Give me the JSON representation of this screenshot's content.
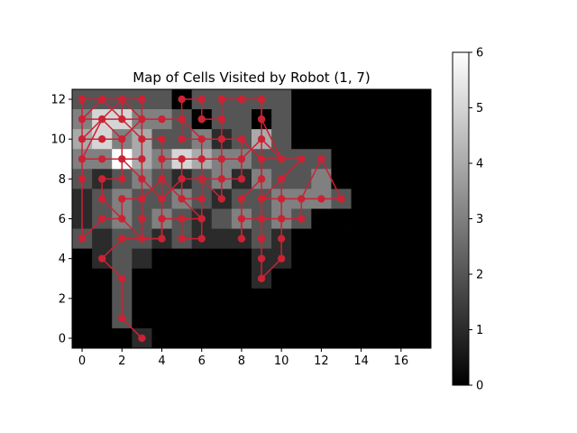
{
  "chart_data": {
    "type": "heatmap",
    "title": "Map of Cells Visited by Robot (1, 7)",
    "xlabel": "",
    "ylabel": "",
    "xlim": [
      -0.5,
      17.5
    ],
    "ylim": [
      -0.5,
      12.5
    ],
    "x_ticks": [
      0,
      2,
      4,
      6,
      8,
      10,
      12,
      14,
      16
    ],
    "y_ticks": [
      0,
      2,
      4,
      6,
      8,
      10,
      12
    ],
    "colorbar": {
      "min": 0,
      "max": 6,
      "ticks": [
        0,
        1,
        2,
        3,
        4,
        5,
        6
      ],
      "colormap": "gray"
    },
    "grid": false,
    "visit_counts": [
      {
        "y": 12,
        "values": [
          2,
          2,
          2,
          2,
          2,
          0,
          2,
          2,
          2,
          2,
          2,
          0,
          0,
          0,
          0,
          0,
          0,
          0
        ]
      },
      {
        "y": 11,
        "values": [
          3,
          5,
          5,
          3,
          3,
          2,
          0,
          2,
          2,
          0,
          2,
          0,
          0,
          0,
          0,
          0,
          0,
          0
        ]
      },
      {
        "y": 10,
        "values": [
          4,
          5,
          3,
          4,
          2,
          2,
          3,
          1,
          2,
          4,
          2,
          0,
          0,
          0,
          0,
          0,
          0,
          0
        ]
      },
      {
        "y": 9,
        "values": [
          3,
          3,
          6,
          4,
          3,
          5,
          4,
          3,
          3,
          2,
          2,
          2,
          2,
          0,
          0,
          0,
          0,
          0
        ]
      },
      {
        "y": 8,
        "values": [
          2,
          1,
          2,
          3,
          2,
          1,
          2,
          3,
          1,
          3,
          2,
          2,
          3,
          0,
          0,
          0,
          0,
          0
        ]
      },
      {
        "y": 7,
        "values": [
          1,
          2,
          3,
          2,
          2,
          3,
          2,
          1,
          2,
          2,
          3,
          3,
          3,
          2,
          0,
          0,
          0,
          0
        ]
      },
      {
        "y": 6,
        "values": [
          1,
          2,
          3,
          2,
          3,
          2,
          1,
          2,
          3,
          2,
          3,
          2,
          0,
          0,
          0,
          0,
          0,
          0
        ]
      },
      {
        "y": 5,
        "values": [
          2,
          1,
          2,
          2,
          1,
          2,
          1,
          1,
          1,
          2,
          1,
          0,
          0,
          0,
          0,
          0,
          0,
          0
        ]
      },
      {
        "y": 4,
        "values": [
          0,
          1,
          2,
          1,
          0,
          0,
          0,
          0,
          0,
          1,
          1,
          0,
          0,
          0,
          0,
          0,
          0,
          0
        ]
      },
      {
        "y": 3,
        "values": [
          0,
          0,
          2,
          0,
          0,
          0,
          0,
          0,
          0,
          1,
          0,
          0,
          0,
          0,
          0,
          0,
          0,
          0
        ]
      },
      {
        "y": 2,
        "values": [
          0,
          0,
          2,
          0,
          0,
          0,
          0,
          0,
          0,
          0,
          0,
          0,
          0,
          0,
          0,
          0,
          0,
          0
        ]
      },
      {
        "y": 1,
        "values": [
          0,
          0,
          2,
          0,
          0,
          0,
          0,
          0,
          0,
          0,
          0,
          0,
          0,
          0,
          0,
          0,
          0,
          0
        ]
      },
      {
        "y": 0,
        "values": [
          0,
          0,
          0,
          1,
          0,
          0,
          0,
          0,
          0,
          0,
          0,
          0,
          0,
          0,
          0,
          0,
          0,
          0
        ]
      }
    ],
    "path": {
      "color": "#cc2233",
      "points": [
        [
          3,
          0
        ],
        [
          2,
          1
        ],
        [
          2,
          3
        ],
        [
          1,
          4
        ],
        [
          2,
          5
        ],
        [
          3,
          5
        ],
        [
          4,
          5
        ],
        [
          4,
          6
        ],
        [
          5,
          6
        ],
        [
          6,
          6
        ],
        [
          5,
          7
        ],
        [
          5,
          8
        ],
        [
          5,
          9
        ],
        [
          4,
          9
        ],
        [
          4,
          10
        ],
        [
          3,
          10
        ],
        [
          3,
          11
        ],
        [
          3,
          12
        ],
        [
          2,
          12
        ],
        [
          1,
          12
        ],
        [
          0,
          12
        ],
        [
          0,
          11
        ],
        [
          1,
          11
        ],
        [
          2,
          11
        ],
        [
          2,
          12
        ],
        [
          3,
          11
        ],
        [
          2,
          10
        ],
        [
          1,
          10
        ],
        [
          0,
          10
        ],
        [
          0,
          9
        ],
        [
          1,
          9
        ],
        [
          2,
          9
        ],
        [
          3,
          9
        ],
        [
          3,
          8
        ],
        [
          3,
          7
        ],
        [
          2,
          7
        ],
        [
          2,
          6
        ],
        [
          1,
          6
        ],
        [
          0,
          5
        ],
        [
          0,
          8
        ],
        [
          0,
          9
        ],
        [
          1,
          11
        ],
        [
          2,
          10
        ],
        [
          2,
          9
        ],
        [
          2,
          8
        ],
        [
          1,
          8
        ],
        [
          1,
          7
        ],
        [
          2,
          6
        ],
        [
          3,
          5
        ],
        [
          4,
          5
        ],
        [
          4,
          7
        ],
        [
          4,
          8
        ],
        [
          4,
          9
        ],
        [
          5,
          9
        ],
        [
          6,
          9
        ],
        [
          6,
          10
        ],
        [
          5,
          10
        ],
        [
          5,
          11
        ],
        [
          4,
          11
        ],
        [
          3,
          11
        ],
        [
          2,
          11
        ],
        [
          2,
          12
        ],
        [
          1,
          11
        ],
        [
          0,
          10
        ],
        [
          0,
          11
        ],
        [
          1,
          12
        ],
        [
          2,
          11
        ],
        [
          3,
          10
        ],
        [
          3,
          9
        ],
        [
          2,
          9
        ],
        [
          3,
          8
        ],
        [
          4,
          7
        ],
        [
          5,
          8
        ],
        [
          6,
          8
        ],
        [
          7,
          7
        ],
        [
          7,
          8
        ],
        [
          6,
          8
        ],
        [
          6,
          7
        ],
        [
          6,
          6
        ],
        [
          6,
          5
        ],
        [
          5,
          5
        ],
        [
          5,
          6
        ],
        [
          4,
          6
        ],
        [
          4,
          5
        ],
        [
          3,
          5
        ],
        [
          3,
          6
        ],
        [
          3,
          7
        ],
        [
          4,
          8
        ],
        [
          5,
          7
        ],
        [
          6,
          7
        ],
        [
          6,
          9
        ],
        [
          7,
          9
        ],
        [
          7,
          10
        ],
        [
          8,
          10
        ],
        [
          9,
          9
        ],
        [
          10,
          9
        ],
        [
          11,
          9
        ],
        [
          10,
          8
        ],
        [
          9,
          7
        ],
        [
          9,
          6
        ],
        [
          9,
          5
        ],
        [
          9,
          4
        ],
        [
          9,
          3
        ],
        [
          10,
          4
        ],
        [
          10,
          5
        ],
        [
          10,
          6
        ],
        [
          10,
          7
        ],
        [
          11,
          7
        ],
        [
          12,
          7
        ],
        [
          13,
          7
        ],
        [
          12,
          9
        ],
        [
          11,
          7
        ],
        [
          11,
          6
        ],
        [
          10,
          6
        ],
        [
          9,
          6
        ],
        [
          8,
          6
        ],
        [
          8,
          5
        ],
        [
          8,
          7
        ],
        [
          9,
          8
        ],
        [
          9,
          9
        ],
        [
          8,
          10
        ],
        [
          8,
          9
        ],
        [
          7,
          9
        ],
        [
          7,
          8
        ],
        [
          8,
          8
        ],
        [
          8,
          9
        ],
        [
          9,
          10
        ],
        [
          10,
          9
        ],
        [
          11,
          9
        ],
        [
          10,
          8
        ],
        [
          10,
          7
        ],
        [
          9,
          7
        ],
        [
          9,
          8
        ],
        [
          9,
          10
        ],
        [
          9,
          11
        ],
        [
          9,
          12
        ],
        [
          8,
          12
        ],
        [
          7,
          12
        ],
        [
          7,
          11
        ],
        [
          6,
          11
        ],
        [
          6,
          12
        ],
        [
          5,
          12
        ],
        [
          5,
          11
        ],
        [
          6,
          10
        ],
        [
          7,
          10
        ],
        [
          7,
          12
        ],
        [
          8,
          12
        ],
        [
          9,
          12
        ],
        [
          9,
          11
        ],
        [
          10,
          9
        ]
      ]
    }
  }
}
